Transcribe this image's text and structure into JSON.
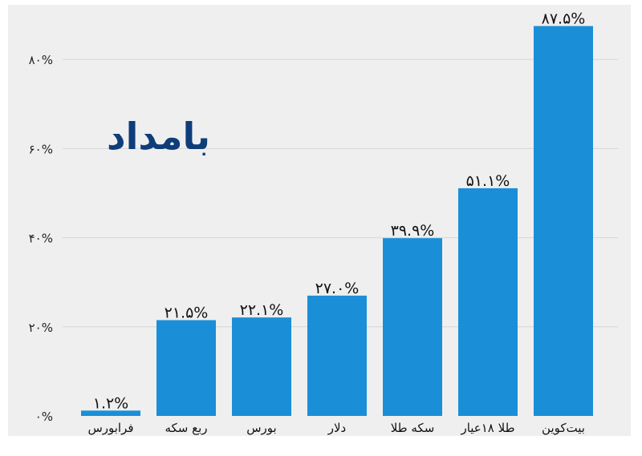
{
  "logo": {
    "text": "بامداد",
    "color": "#0e3d7a"
  },
  "colors": {
    "bar": "#1a8fd8",
    "grid": "#d6d6d6",
    "background": "#efefef"
  },
  "chart_data": {
    "type": "bar",
    "title": "",
    "xlabel": "",
    "ylabel": "",
    "ylim": [
      0,
      90
    ],
    "yticks": [
      {
        "value": 0,
        "label": "۰%"
      },
      {
        "value": 20,
        "label": "۲۰%"
      },
      {
        "value": 40,
        "label": "۴۰%"
      },
      {
        "value": 60,
        "label": "۶۰%"
      },
      {
        "value": 80,
        "label": "۸۰%"
      }
    ],
    "grid": true,
    "categories": [
      "فرابورس",
      "ربع سکه",
      "بورس",
      "دلار",
      "سکه طلا",
      "طلا ۱۸عیار",
      "بیت‌کوین"
    ],
    "values": [
      1.2,
      21.5,
      22.1,
      27.0,
      39.9,
      51.1,
      87.5
    ],
    "value_labels": [
      "۱.۲%",
      "۲۱.۵%",
      "۲۲.۱%",
      "۲۷.۰%",
      "۳۹.۹%",
      "۵۱.۱%",
      "۸۷.۵%"
    ]
  }
}
